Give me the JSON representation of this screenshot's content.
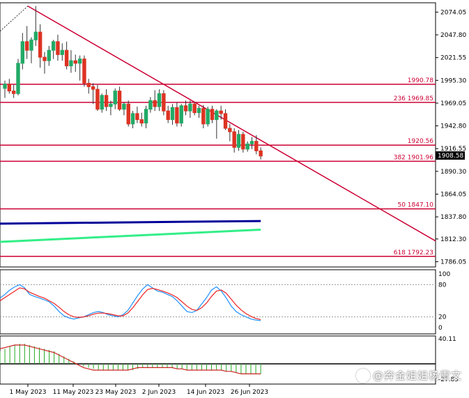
{
  "chart_data": {
    "type": "candlestick",
    "price_axis": {
      "ticks": [
        "2074.05",
        "2047.80",
        "2021.55",
        "1995.30",
        "1969.05",
        "1942.80",
        "1916.55",
        "1890.30",
        "1864.05",
        "1837.80",
        "1812.30",
        "1786.05"
      ],
      "ylim": [
        1780,
        2084
      ],
      "current_price": "1908.58"
    },
    "date_axis": {
      "ticks": [
        "1 May 2023",
        "11 May 2023",
        "23 May 2023",
        "2 Jun 2023",
        "14 Jun 2023",
        "26 Jun 2023"
      ]
    },
    "levels": [
      {
        "label": "1990.78",
        "value": 1990.78
      },
      {
        "label": "236  1969.85",
        "value": 1969.85
      },
      {
        "label": "1920.56",
        "value": 1920.56
      },
      {
        "label": "382  1901.96",
        "value": 1901.96
      },
      {
        "label": "50  1847.10",
        "value": 1847.1
      },
      {
        "label": "618 1792.23",
        "value": 1792.23
      }
    ],
    "trendline": {
      "from": [
        7,
        2081
      ],
      "to": [
        99,
        1810
      ]
    },
    "candles": [
      {
        "o": 1986,
        "h": 1995,
        "l": 1975,
        "c": 1991
      },
      {
        "o": 1991,
        "h": 1997,
        "l": 1980,
        "c": 1983
      },
      {
        "o": 1983,
        "h": 1990,
        "l": 1975,
        "c": 1980
      },
      {
        "o": 1980,
        "h": 2020,
        "l": 1978,
        "c": 2015
      },
      {
        "o": 2015,
        "h": 2050,
        "l": 2008,
        "c": 2040
      },
      {
        "o": 2040,
        "h": 2058,
        "l": 2020,
        "c": 2030
      },
      {
        "o": 2030,
        "h": 2045,
        "l": 2015,
        "c": 2042
      },
      {
        "o": 2042,
        "h": 2081,
        "l": 2035,
        "c": 2051
      },
      {
        "o": 2051,
        "h": 2060,
        "l": 2010,
        "c": 2022
      },
      {
        "o": 2022,
        "h": 2028,
        "l": 2003,
        "c": 2018
      },
      {
        "o": 2018,
        "h": 2035,
        "l": 2012,
        "c": 2030
      },
      {
        "o": 2030,
        "h": 2042,
        "l": 2020,
        "c": 2040
      },
      {
        "o": 2040,
        "h": 2048,
        "l": 2018,
        "c": 2025
      },
      {
        "o": 2025,
        "h": 2038,
        "l": 2018,
        "c": 2030
      },
      {
        "o": 2030,
        "h": 2040,
        "l": 2008,
        "c": 2012
      },
      {
        "o": 2012,
        "h": 2030,
        "l": 2004,
        "c": 2018
      },
      {
        "o": 2018,
        "h": 2025,
        "l": 2005,
        "c": 2015
      },
      {
        "o": 2015,
        "h": 2024,
        "l": 1995,
        "c": 2020
      },
      {
        "o": 2020,
        "h": 2024,
        "l": 1988,
        "c": 1992
      },
      {
        "o": 1992,
        "h": 1997,
        "l": 1980,
        "c": 1988
      },
      {
        "o": 1988,
        "h": 1992,
        "l": 1968,
        "c": 1985
      },
      {
        "o": 1985,
        "h": 1990,
        "l": 1960,
        "c": 1962
      },
      {
        "o": 1962,
        "h": 1980,
        "l": 1958,
        "c": 1978
      },
      {
        "o": 1978,
        "h": 1985,
        "l": 1960,
        "c": 1965
      },
      {
        "o": 1965,
        "h": 1972,
        "l": 1955,
        "c": 1968
      },
      {
        "o": 1968,
        "h": 1986,
        "l": 1962,
        "c": 1983
      },
      {
        "o": 1983,
        "h": 1988,
        "l": 1960,
        "c": 1962
      },
      {
        "o": 1962,
        "h": 1970,
        "l": 1955,
        "c": 1968
      },
      {
        "o": 1968,
        "h": 1972,
        "l": 1942,
        "c": 1945
      },
      {
        "o": 1945,
        "h": 1960,
        "l": 1940,
        "c": 1957
      },
      {
        "o": 1957,
        "h": 1965,
        "l": 1946,
        "c": 1950
      },
      {
        "o": 1950,
        "h": 1958,
        "l": 1942,
        "c": 1946
      },
      {
        "o": 1946,
        "h": 1966,
        "l": 1940,
        "c": 1962
      },
      {
        "o": 1962,
        "h": 1976,
        "l": 1958,
        "c": 1972
      },
      {
        "o": 1972,
        "h": 1984,
        "l": 1960,
        "c": 1965
      },
      {
        "o": 1965,
        "h": 1985,
        "l": 1960,
        "c": 1980
      },
      {
        "o": 1980,
        "h": 1984,
        "l": 1955,
        "c": 1960
      },
      {
        "o": 1960,
        "h": 1966,
        "l": 1946,
        "c": 1950
      },
      {
        "o": 1950,
        "h": 1968,
        "l": 1944,
        "c": 1964
      },
      {
        "o": 1964,
        "h": 1970,
        "l": 1942,
        "c": 1946
      },
      {
        "o": 1946,
        "h": 1968,
        "l": 1942,
        "c": 1966
      },
      {
        "o": 1966,
        "h": 1972,
        "l": 1955,
        "c": 1960
      },
      {
        "o": 1960,
        "h": 1972,
        "l": 1952,
        "c": 1968
      },
      {
        "o": 1968,
        "h": 1970,
        "l": 1955,
        "c": 1958
      },
      {
        "o": 1958,
        "h": 1966,
        "l": 1952,
        "c": 1963
      },
      {
        "o": 1963,
        "h": 1967,
        "l": 1940,
        "c": 1945
      },
      {
        "o": 1945,
        "h": 1965,
        "l": 1942,
        "c": 1962
      },
      {
        "o": 1962,
        "h": 1966,
        "l": 1946,
        "c": 1950
      },
      {
        "o": 1950,
        "h": 1962,
        "l": 1928,
        "c": 1960
      },
      {
        "o": 1960,
        "h": 1966,
        "l": 1950,
        "c": 1957
      },
      {
        "o": 1957,
        "h": 1962,
        "l": 1938,
        "c": 1940
      },
      {
        "o": 1940,
        "h": 1945,
        "l": 1925,
        "c": 1936
      },
      {
        "o": 1936,
        "h": 1940,
        "l": 1912,
        "c": 1918
      },
      {
        "o": 1918,
        "h": 1938,
        "l": 1914,
        "c": 1933
      },
      {
        "o": 1933,
        "h": 1936,
        "l": 1912,
        "c": 1916
      },
      {
        "o": 1916,
        "h": 1925,
        "l": 1913,
        "c": 1922
      },
      {
        "o": 1922,
        "h": 1930,
        "l": 1916,
        "c": 1925
      },
      {
        "o": 1925,
        "h": 1932,
        "l": 1910,
        "c": 1914
      },
      {
        "o": 1914,
        "h": 1918,
        "l": 1904,
        "c": 1908
      }
    ],
    "moving_averages": [
      {
        "color": "#000099",
        "from": 1830,
        "to": 1833
      },
      {
        "color": "#33ee88",
        "from": 1809,
        "to": 1823
      }
    ],
    "stochastic": {
      "levels": [
        "100",
        "80",
        "20",
        "0"
      ],
      "main": [
        55,
        62,
        70,
        76,
        80,
        74,
        62,
        58,
        55,
        52,
        48,
        40,
        30,
        22,
        18,
        16,
        18,
        20,
        24,
        28,
        30,
        28,
        24,
        22,
        20,
        24,
        32,
        46,
        60,
        72,
        80,
        74,
        68,
        66,
        62,
        58,
        50,
        40,
        30,
        28,
        32,
        44,
        56,
        70,
        76,
        68,
        55,
        40,
        30,
        24,
        20,
        16,
        14,
        13
      ],
      "signal": [
        50,
        56,
        62,
        68,
        74,
        72,
        66,
        62,
        58,
        55,
        50,
        45,
        38,
        30,
        24,
        20,
        19,
        20,
        22,
        25,
        27,
        27,
        26,
        24,
        22,
        22,
        27,
        37,
        49,
        61,
        71,
        73,
        71,
        68,
        65,
        61,
        56,
        48,
        40,
        34,
        32,
        37,
        46,
        58,
        68,
        70,
        64,
        53,
        42,
        33,
        26,
        21,
        17,
        15
      ]
    },
    "macd": {
      "axis_ticks": [
        "40.11",
        "-27.85"
      ],
      "histogram": [
        10,
        12,
        14,
        15,
        16,
        16,
        15,
        14,
        13,
        12,
        11,
        10,
        8,
        6,
        4,
        2,
        0,
        -2,
        -3,
        -4,
        -5,
        -5,
        -5,
        -5,
        -5,
        -5,
        -5,
        -5,
        -4,
        -3,
        -3,
        -3,
        -3,
        -3,
        -3,
        -3,
        -4,
        -4,
        -5,
        -5,
        -5,
        -5,
        -5,
        -5,
        -5,
        -5,
        -6,
        -6,
        -7,
        -8,
        -8,
        -8,
        -8,
        -8
      ],
      "line": [
        12,
        13,
        14,
        15,
        15,
        15,
        14,
        13,
        12,
        11,
        10,
        9,
        7,
        5,
        3,
        1,
        -1,
        -3,
        -4,
        -5,
        -5,
        -5,
        -5,
        -5,
        -5,
        -5,
        -5,
        -4,
        -3,
        -3,
        -3,
        -3,
        -3,
        -3,
        -3,
        -3,
        -4,
        -4,
        -5,
        -5,
        -5,
        -5,
        -5,
        -5,
        -5,
        -5,
        -6,
        -6,
        -7,
        -8,
        -8,
        -8,
        -8,
        -8
      ]
    },
    "watermark": "@奔金姐姐杨雪文"
  }
}
